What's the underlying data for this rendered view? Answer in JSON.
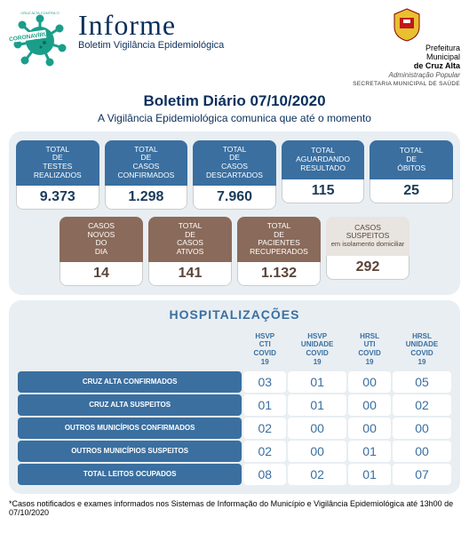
{
  "header": {
    "title": "Informe",
    "subtitle": "Boletim Vigilância Epidemiológica",
    "virus_label": "CORONAVÍRUS",
    "virus_top": "CRUZ ALTA CONTRA O",
    "prefeitura_l1": "Prefeitura",
    "prefeitura_l2": "Municipal",
    "prefeitura_l3": "de Cruz Alta",
    "admin_pop": "Administração Popular",
    "secretaria": "SECRETARIA MUNICIPAL DE SAÚDE"
  },
  "main": {
    "title": "Boletim Diário ",
    "date": "07/10/2020",
    "subtitle": "A Vigilância Epidemiológica comunica que até o momento"
  },
  "row1": [
    {
      "label": "TOTAL DE TESTES REALIZADOS",
      "value": "9.373"
    },
    {
      "label": "TOTAL DE CASOS CONFIRMADOS",
      "value": "1.298"
    },
    {
      "label": "TOTAL DE CASOS DESCARTADOS",
      "value": "7.960"
    },
    {
      "label": "TOTAL AGUARDANDO RESULTADO",
      "value": "115"
    },
    {
      "label": "TOTAL DE ÓBITOS",
      "value": "25"
    }
  ],
  "row2": [
    {
      "label": "CASOS NOVOS DO DIA",
      "value": "14",
      "cls": "c-brown"
    },
    {
      "label": "TOTAL DE CASOS ATIVOS",
      "value": "141",
      "cls": "c-brown"
    },
    {
      "label": "TOTAL DE PACIENTES RECUPERADOS",
      "value": "1.132",
      "cls": "c-brown"
    },
    {
      "label": "CASOS SUSPEITOS",
      "sub": "em isolamento domiciliar",
      "value": "292",
      "cls": "c-lite"
    }
  ],
  "hosp": {
    "title": "HOSPITALIZAÇÕES",
    "columns": [
      "",
      "HSVP CTI COVID 19",
      "HSVP UNIDADE COVID 19",
      "HRSL UTI COVID 19",
      "HRSL UNIDADE COVID 19"
    ],
    "rows": [
      {
        "h": "CRUZ ALTA CONFIRMADOS",
        "v": [
          "03",
          "01",
          "00",
          "05"
        ]
      },
      {
        "h": "CRUZ ALTA SUSPEITOS",
        "v": [
          "01",
          "01",
          "00",
          "02"
        ]
      },
      {
        "h": "OUTROS MUNICÍPIOS CONFIRMADOS",
        "v": [
          "02",
          "00",
          "00",
          "00"
        ]
      },
      {
        "h": "OUTROS MUNICÍPIOS SUSPEITOS",
        "v": [
          "02",
          "00",
          "01",
          "00"
        ]
      },
      {
        "h": "TOTAL LEITOS OCUPADOS",
        "v": [
          "08",
          "02",
          "01",
          "07"
        ]
      }
    ]
  },
  "footnote": "*Casos notificados e exames informados nos Sistemas de Informação do Município e Vigilância Epidemiológica até 13h00 de 07/10/2020"
}
